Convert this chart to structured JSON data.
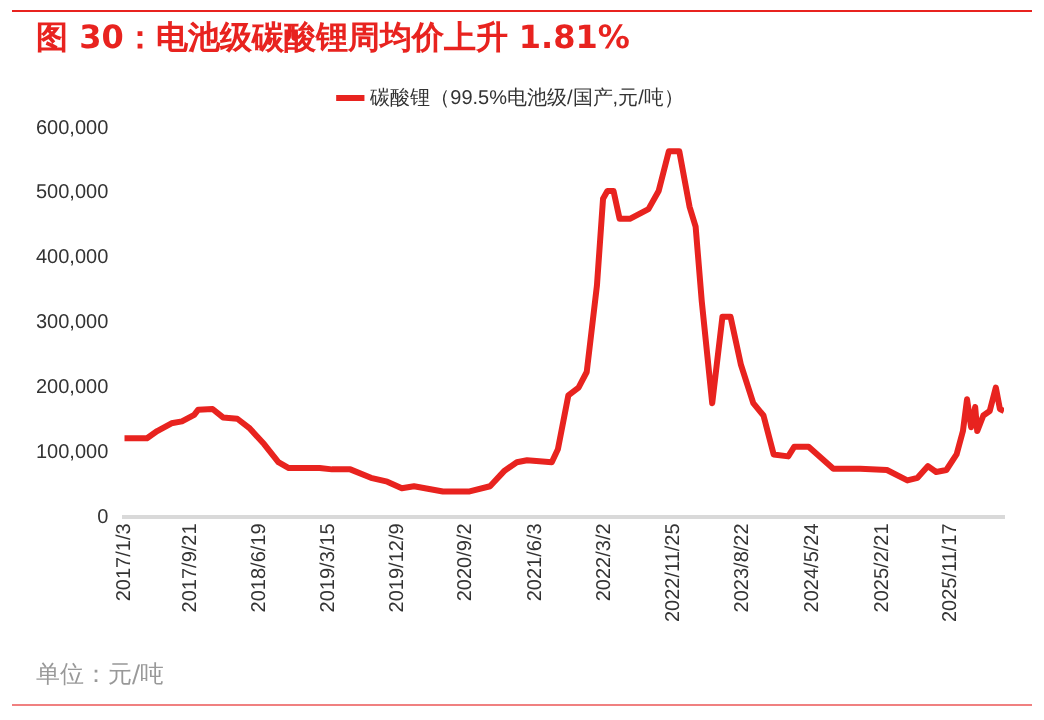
{
  "chart_data": {
    "type": "line",
    "title": "图 30：电池级碳酸锂周均价上升 1.81%",
    "legend": "top",
    "grid": false,
    "marker": "none",
    "line_style": "solid",
    "x": [
      "2017-01-03",
      "2017-04-02",
      "2017-05-12",
      "2017-07-07",
      "2017-08-17",
      "2017-10-04",
      "2017-10-20",
      "2017-12-15",
      "2018-01-25",
      "2018-03-22",
      "2018-05-10",
      "2018-07-05",
      "2018-08-30",
      "2018-10-10",
      "2019-02-08",
      "2019-03-28",
      "2019-06-08",
      "2019-08-28",
      "2019-10-31",
      "2019-12-27",
      "2020-02-13",
      "2020-06-05",
      "2020-09-18",
      "2020-12-07",
      "2021-02-02",
      "2021-03-22",
      "2021-05-01",
      "2021-08-06",
      "2021-08-30",
      "2021-10-10",
      "2021-11-19",
      "2021-12-21",
      "2022-01-30",
      "2022-02-23",
      "2022-03-12",
      "2022-04-05",
      "2022-04-29",
      "2022-06-08",
      "2022-08-20",
      "2022-09-29",
      "2022-11-08",
      "2022-12-19",
      "2023-01-28",
      "2023-02-21",
      "2023-03-17",
      "2023-04-27",
      "2023-06-06",
      "2023-07-08",
      "2023-08-17",
      "2023-10-05",
      "2023-11-14",
      "2023-12-24",
      "2024-02-19",
      "2024-03-14",
      "2024-05-09",
      "2024-08-14",
      "2024-11-27",
      "2025-03-12",
      "2025-05-31",
      "2025-07-10",
      "2025-08-20",
      "2025-09-21",
      "2025-10-31",
      "2025-12-10",
      "2026-01-04",
      "2026-01-20",
      "2026-02-05",
      "2026-02-21",
      "2026-03-01",
      "2026-03-25",
      "2026-04-19",
      "2026-05-13",
      "2026-05-29",
      "2026-06-14"
    ],
    "series": [
      {
        "name": "碳酸锂（99.5%电池级/国产,元/吨）",
        "color": "#e8231f",
        "values": [
          122000,
          122000,
          133000,
          145000,
          148000,
          158000,
          166000,
          167000,
          154000,
          152000,
          137000,
          113000,
          85000,
          76000,
          76000,
          74000,
          74000,
          61000,
          55000,
          45000,
          48000,
          40000,
          40000,
          48000,
          72000,
          85000,
          88000,
          85000,
          105000,
          188000,
          200000,
          224000,
          357000,
          491000,
          503000,
          503000,
          460000,
          460000,
          475000,
          503000,
          564000,
          564000,
          479000,
          448000,
          333000,
          176000,
          309000,
          309000,
          236000,
          176000,
          157000,
          97000,
          94000,
          109000,
          109000,
          75000,
          75000,
          73000,
          57000,
          61000,
          79000,
          70000,
          73000,
          97000,
          133000,
          182000,
          139000,
          170000,
          133000,
          157000,
          164000,
          200000,
          167000,
          164000
        ]
      }
    ],
    "xlim": [
      "2017-01-03",
      "2026-06-14"
    ],
    "xticks": [
      {
        "value": "2017-01-03",
        "label": "2017/1/3"
      },
      {
        "value": "2017-09-21",
        "label": "2017/9/21"
      },
      {
        "value": "2018-06-19",
        "label": "2018/6/19"
      },
      {
        "value": "2019-03-15",
        "label": "2019/3/15"
      },
      {
        "value": "2019-12-09",
        "label": "2019/12/9"
      },
      {
        "value": "2020-09-02",
        "label": "2020/9/2"
      },
      {
        "value": "2021-06-03",
        "label": "2021/6/3"
      },
      {
        "value": "2022-03-02",
        "label": "2022/3/2"
      },
      {
        "value": "2022-11-25",
        "label": "2022/11/25"
      },
      {
        "value": "2023-08-22",
        "label": "2023/8/22"
      },
      {
        "value": "2024-05-24",
        "label": "2024/5/24"
      },
      {
        "value": "2025-02-21",
        "label": "2025/2/21"
      },
      {
        "value": "2025-11-17",
        "label": "2025/11/17"
      }
    ],
    "ylim": [
      0,
      600000
    ],
    "yticks": [
      0,
      {
        "value": 100000,
        "label": "100,000"
      },
      {
        "value": 200000,
        "label": "200,000"
      },
      {
        "value": 300000,
        "label": "300,000"
      },
      {
        "value": 400000,
        "label": "400,000"
      },
      {
        "value": 500000,
        "label": "500,000"
      },
      {
        "value": 600000,
        "label": "600,000"
      }
    ],
    "annotations": [
      "单位：元/吨"
    ]
  }
}
